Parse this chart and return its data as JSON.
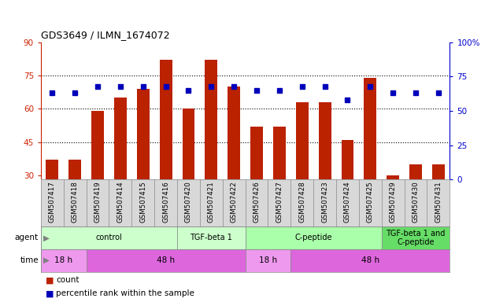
{
  "title": "GDS3649 / ILMN_1674072",
  "samples": [
    "GSM507417",
    "GSM507418",
    "GSM507419",
    "GSM507414",
    "GSM507415",
    "GSM507416",
    "GSM507420",
    "GSM507421",
    "GSM507422",
    "GSM507426",
    "GSM507427",
    "GSM507428",
    "GSM507423",
    "GSM507424",
    "GSM507425",
    "GSM507429",
    "GSM507430",
    "GSM507431"
  ],
  "counts": [
    37,
    37,
    59,
    65,
    69,
    82,
    60,
    82,
    70,
    52,
    52,
    63,
    63,
    46,
    74,
    30,
    35,
    35
  ],
  "percentile": [
    63,
    63,
    68,
    68,
    68,
    68,
    65,
    68,
    68,
    65,
    65,
    68,
    68,
    58,
    68,
    63,
    63,
    63
  ],
  "left_ylim": [
    28,
    90
  ],
  "left_yticks": [
    30,
    45,
    60,
    75,
    90
  ],
  "right_ylim": [
    0,
    100
  ],
  "right_yticks": [
    0,
    25,
    50,
    75,
    100
  ],
  "right_yticklabels": [
    "0",
    "25",
    "50",
    "75",
    "100%"
  ],
  "bar_color": "#bb2200",
  "dot_color": "#0000bb",
  "agent_groups": [
    {
      "label": "control",
      "start": 0,
      "end": 5,
      "color": "#ccffcc"
    },
    {
      "label": "TGF-beta 1",
      "start": 6,
      "end": 8,
      "color": "#ccffcc"
    },
    {
      "label": "C-peptide",
      "start": 9,
      "end": 14,
      "color": "#aaffaa"
    },
    {
      "label": "TGF-beta 1 and\nC-peptide",
      "start": 15,
      "end": 17,
      "color": "#66dd66"
    }
  ],
  "time_groups": [
    {
      "label": "18 h",
      "start": 0,
      "end": 1,
      "color": "#ee99ee"
    },
    {
      "label": "48 h",
      "start": 2,
      "end": 8,
      "color": "#dd66dd"
    },
    {
      "label": "18 h",
      "start": 9,
      "end": 10,
      "color": "#ee99ee"
    },
    {
      "label": "48 h",
      "start": 11,
      "end": 17,
      "color": "#dd66dd"
    }
  ],
  "label_agent": "agent",
  "label_time": "time",
  "legend_count": "count",
  "legend_pct": "percentile rank within the sample",
  "tick_color_left": "#cc2200",
  "tick_color_right": "#0000cc",
  "grid_color": "black",
  "grid_linestyle": "dotted",
  "xlabels_bg": "#d8d8d8",
  "spine_color": "#888888"
}
